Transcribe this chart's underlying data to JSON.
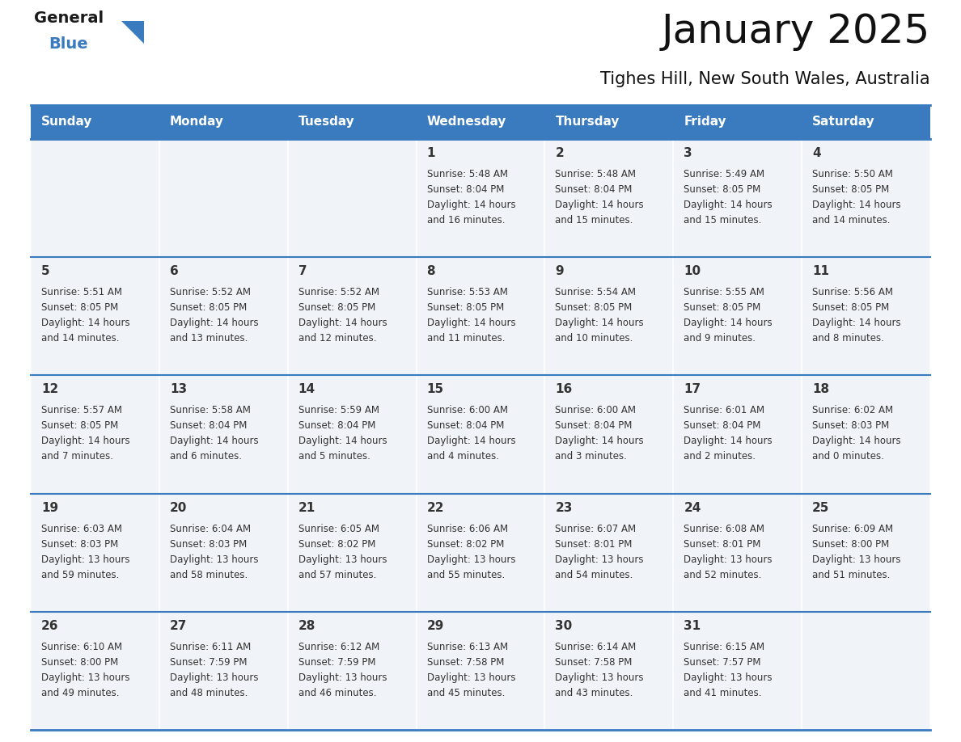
{
  "title": "January 2025",
  "subtitle": "Tighes Hill, New South Wales, Australia",
  "header_color": "#3a7abf",
  "header_text_color": "#ffffff",
  "cell_bg_color": "#f0f3f7",
  "border_color": "#3a7abf",
  "text_color": "#333333",
  "days_of_week": [
    "Sunday",
    "Monday",
    "Tuesday",
    "Wednesday",
    "Thursday",
    "Friday",
    "Saturday"
  ],
  "weeks": [
    [
      {
        "day": "",
        "sunrise": "",
        "sunset": "",
        "daylight_hrs": "",
        "daylight_min": ""
      },
      {
        "day": "",
        "sunrise": "",
        "sunset": "",
        "daylight_hrs": "",
        "daylight_min": ""
      },
      {
        "day": "",
        "sunrise": "",
        "sunset": "",
        "daylight_hrs": "",
        "daylight_min": ""
      },
      {
        "day": "1",
        "sunrise": "5:48 AM",
        "sunset": "8:04 PM",
        "daylight_hrs": "14",
        "daylight_min": "16"
      },
      {
        "day": "2",
        "sunrise": "5:48 AM",
        "sunset": "8:04 PM",
        "daylight_hrs": "14",
        "daylight_min": "15"
      },
      {
        "day": "3",
        "sunrise": "5:49 AM",
        "sunset": "8:05 PM",
        "daylight_hrs": "14",
        "daylight_min": "15"
      },
      {
        "day": "4",
        "sunrise": "5:50 AM",
        "sunset": "8:05 PM",
        "daylight_hrs": "14",
        "daylight_min": "14"
      }
    ],
    [
      {
        "day": "5",
        "sunrise": "5:51 AM",
        "sunset": "8:05 PM",
        "daylight_hrs": "14",
        "daylight_min": "14"
      },
      {
        "day": "6",
        "sunrise": "5:52 AM",
        "sunset": "8:05 PM",
        "daylight_hrs": "14",
        "daylight_min": "13"
      },
      {
        "day": "7",
        "sunrise": "5:52 AM",
        "sunset": "8:05 PM",
        "daylight_hrs": "14",
        "daylight_min": "12"
      },
      {
        "day": "8",
        "sunrise": "5:53 AM",
        "sunset": "8:05 PM",
        "daylight_hrs": "14",
        "daylight_min": "11"
      },
      {
        "day": "9",
        "sunrise": "5:54 AM",
        "sunset": "8:05 PM",
        "daylight_hrs": "14",
        "daylight_min": "10"
      },
      {
        "day": "10",
        "sunrise": "5:55 AM",
        "sunset": "8:05 PM",
        "daylight_hrs": "14",
        "daylight_min": "9"
      },
      {
        "day": "11",
        "sunrise": "5:56 AM",
        "sunset": "8:05 PM",
        "daylight_hrs": "14",
        "daylight_min": "8"
      }
    ],
    [
      {
        "day": "12",
        "sunrise": "5:57 AM",
        "sunset": "8:05 PM",
        "daylight_hrs": "14",
        "daylight_min": "7"
      },
      {
        "day": "13",
        "sunrise": "5:58 AM",
        "sunset": "8:04 PM",
        "daylight_hrs": "14",
        "daylight_min": "6"
      },
      {
        "day": "14",
        "sunrise": "5:59 AM",
        "sunset": "8:04 PM",
        "daylight_hrs": "14",
        "daylight_min": "5"
      },
      {
        "day": "15",
        "sunrise": "6:00 AM",
        "sunset": "8:04 PM",
        "daylight_hrs": "14",
        "daylight_min": "4"
      },
      {
        "day": "16",
        "sunrise": "6:00 AM",
        "sunset": "8:04 PM",
        "daylight_hrs": "14",
        "daylight_min": "3"
      },
      {
        "day": "17",
        "sunrise": "6:01 AM",
        "sunset": "8:04 PM",
        "daylight_hrs": "14",
        "daylight_min": "2"
      },
      {
        "day": "18",
        "sunrise": "6:02 AM",
        "sunset": "8:03 PM",
        "daylight_hrs": "14",
        "daylight_min": "0"
      }
    ],
    [
      {
        "day": "19",
        "sunrise": "6:03 AM",
        "sunset": "8:03 PM",
        "daylight_hrs": "13",
        "daylight_min": "59"
      },
      {
        "day": "20",
        "sunrise": "6:04 AM",
        "sunset": "8:03 PM",
        "daylight_hrs": "13",
        "daylight_min": "58"
      },
      {
        "day": "21",
        "sunrise": "6:05 AM",
        "sunset": "8:02 PM",
        "daylight_hrs": "13",
        "daylight_min": "57"
      },
      {
        "day": "22",
        "sunrise": "6:06 AM",
        "sunset": "8:02 PM",
        "daylight_hrs": "13",
        "daylight_min": "55"
      },
      {
        "day": "23",
        "sunrise": "6:07 AM",
        "sunset": "8:01 PM",
        "daylight_hrs": "13",
        "daylight_min": "54"
      },
      {
        "day": "24",
        "sunrise": "6:08 AM",
        "sunset": "8:01 PM",
        "daylight_hrs": "13",
        "daylight_min": "52"
      },
      {
        "day": "25",
        "sunrise": "6:09 AM",
        "sunset": "8:00 PM",
        "daylight_hrs": "13",
        "daylight_min": "51"
      }
    ],
    [
      {
        "day": "26",
        "sunrise": "6:10 AM",
        "sunset": "8:00 PM",
        "daylight_hrs": "13",
        "daylight_min": "49"
      },
      {
        "day": "27",
        "sunrise": "6:11 AM",
        "sunset": "7:59 PM",
        "daylight_hrs": "13",
        "daylight_min": "48"
      },
      {
        "day": "28",
        "sunrise": "6:12 AM",
        "sunset": "7:59 PM",
        "daylight_hrs": "13",
        "daylight_min": "46"
      },
      {
        "day": "29",
        "sunrise": "6:13 AM",
        "sunset": "7:58 PM",
        "daylight_hrs": "13",
        "daylight_min": "45"
      },
      {
        "day": "30",
        "sunrise": "6:14 AM",
        "sunset": "7:58 PM",
        "daylight_hrs": "13",
        "daylight_min": "43"
      },
      {
        "day": "31",
        "sunrise": "6:15 AM",
        "sunset": "7:57 PM",
        "daylight_hrs": "13",
        "daylight_min": "41"
      },
      {
        "day": "",
        "sunrise": "",
        "sunset": "",
        "daylight_hrs": "",
        "daylight_min": ""
      }
    ]
  ],
  "logo_color_general": "#1a1a1a",
  "logo_color_blue": "#3a7abf",
  "title_fontsize": 36,
  "subtitle_fontsize": 15,
  "header_fontsize": 11,
  "day_num_fontsize": 11,
  "cell_text_fontsize": 8.5
}
